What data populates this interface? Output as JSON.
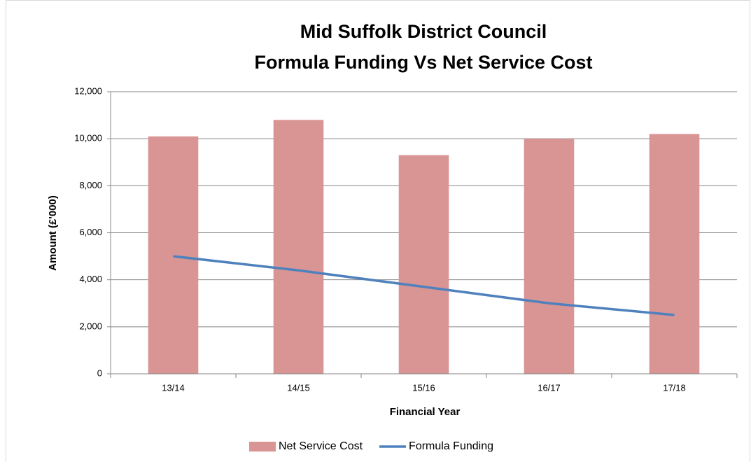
{
  "chart_data": {
    "type": "bar",
    "title": [
      "Mid Suffolk District Council",
      "Formula Funding Vs Net Service Cost"
    ],
    "x_label": "Financial Year",
    "y_label": "Amount (£'000)",
    "categories": [
      "13/14",
      "14/15",
      "15/16",
      "16/17",
      "17/18"
    ],
    "series": [
      {
        "name": "Net Service Cost",
        "type": "bar",
        "color": "#d99594",
        "values": [
          10100,
          10800,
          9300,
          10000,
          10200
        ]
      },
      {
        "name": "Formula Funding",
        "type": "line",
        "color": "#4f81bd",
        "values": [
          5000,
          4400,
          3700,
          3000,
          2500
        ]
      }
    ],
    "ylim": [
      0,
      12000
    ],
    "yticks": [
      0,
      {
        "value": 2000,
        "label": "2,000"
      },
      {
        "value": 4000,
        "label": "4,000"
      },
      {
        "value": 6000,
        "label": "6,000"
      },
      {
        "value": 8000,
        "label": "8,000"
      },
      {
        "value": 10000,
        "label": "10,000"
      },
      {
        "value": 12000,
        "label": "12,000"
      }
    ],
    "grid": true,
    "legend": "bottom"
  }
}
